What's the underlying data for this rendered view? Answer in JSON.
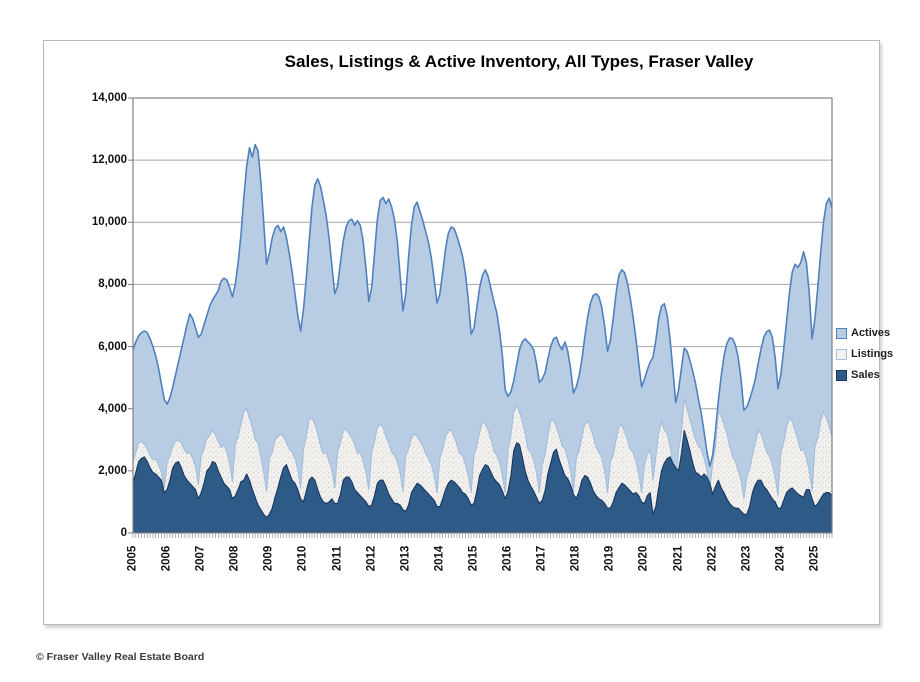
{
  "page": {
    "footer": "© Fraser Valley Real Estate Board"
  },
  "chart_data": {
    "type": "area",
    "title": "Sales, Listings & Active Inventory, All Types, Fraser Valley",
    "x_start": "2005-01",
    "x_end": "2025-07",
    "months_per_point": 1,
    "x_tick_labels": [
      "2005",
      "2006",
      "2007",
      "2008",
      "2009",
      "2010",
      "2011",
      "2012",
      "2013",
      "2014",
      "2015",
      "2016",
      "2017",
      "2018",
      "2019",
      "2020",
      "2021",
      "2022",
      "2023",
      "2024",
      "2025"
    ],
    "y_ticks": [
      0,
      2000,
      4000,
      6000,
      8000,
      10000,
      12000,
      14000
    ],
    "y_tick_labels": [
      "0",
      "2,000",
      "4,000",
      "6,000",
      "8,000",
      "10,000",
      "12,000",
      "14,000"
    ],
    "ylim": [
      0,
      14000
    ],
    "grid": true,
    "legend_position": "right",
    "colors": {
      "actives_fill": "#b8cce4",
      "actives_stroke": "#4f81bd",
      "listings_fill": "#f3f2f0",
      "listings_stroke": "#a3bddb",
      "sales_fill": "#2e5a88",
      "sales_stroke": "#17375e",
      "gridline": "#a6a6a6",
      "plot_border": "#808080",
      "tick": "#7f7f7f"
    },
    "series": [
      {
        "name": "Actives",
        "fill": "#b8cce4",
        "stroke": "#4f81bd",
        "values": [
          5900,
          6150,
          6350,
          6450,
          6500,
          6450,
          6250,
          6000,
          5700,
          5300,
          4800,
          4300,
          4150,
          4350,
          4700,
          5100,
          5500,
          5900,
          6300,
          6700,
          7050,
          6900,
          6600,
          6300,
          6400,
          6700,
          7000,
          7300,
          7500,
          7650,
          7800,
          8100,
          8200,
          8150,
          7900,
          7600,
          8000,
          8700,
          9600,
          10800,
          11800,
          12400,
          12100,
          12500,
          12300,
          11300,
          10000,
          8650,
          9000,
          9500,
          9800,
          9900,
          9700,
          9850,
          9500,
          9000,
          8400,
          7700,
          7000,
          6500,
          7200,
          8200,
          9400,
          10500,
          11200,
          11400,
          11150,
          10700,
          10200,
          9500,
          8600,
          7700,
          7950,
          8700,
          9400,
          9850,
          10050,
          10100,
          9900,
          10050,
          9900,
          9400,
          8500,
          7450,
          7900,
          9000,
          10100,
          10700,
          10800,
          10600,
          10750,
          10500,
          10100,
          9400,
          8300,
          7150,
          7700,
          8900,
          9900,
          10500,
          10650,
          10350,
          10050,
          9700,
          9350,
          8850,
          8150,
          7400,
          7700,
          8400,
          9150,
          9650,
          9850,
          9800,
          9550,
          9250,
          8900,
          8350,
          7500,
          6400,
          6600,
          7250,
          7900,
          8300,
          8470,
          8250,
          7850,
          7450,
          7100,
          6500,
          5700,
          4600,
          4400,
          4550,
          4900,
          5400,
          5900,
          6150,
          6250,
          6150,
          6050,
          5900,
          5450,
          4850,
          4950,
          5150,
          5600,
          6000,
          6250,
          6300,
          6050,
          5900,
          6150,
          5850,
          5300,
          4500,
          4700,
          5050,
          5600,
          6300,
          6950,
          7400,
          7650,
          7700,
          7600,
          7250,
          6650,
          5850,
          6200,
          6900,
          7700,
          8300,
          8470,
          8380,
          8050,
          7550,
          6950,
          6250,
          5450,
          4700,
          4950,
          5250,
          5500,
          5650,
          6200,
          6900,
          7300,
          7380,
          7000,
          6250,
          5250,
          4200,
          4600,
          5300,
          5950,
          5850,
          5550,
          5200,
          4800,
          4300,
          3850,
          3250,
          2600,
          2150,
          2500,
          3300,
          4250,
          5050,
          5700,
          6100,
          6280,
          6250,
          6050,
          5650,
          4950,
          3950,
          4050,
          4300,
          4600,
          4950,
          5450,
          5900,
          6300,
          6480,
          6530,
          6300,
          5650,
          4650,
          5100,
          5900,
          6800,
          7700,
          8400,
          8650,
          8550,
          8700,
          9050,
          8700,
          7700,
          6250,
          6900,
          7900,
          9000,
          10000,
          10600,
          10780,
          10460
        ]
      },
      {
        "name": "Listings",
        "fill": "#f3f2f0",
        "stroke": "#a3bddb",
        "texture": "speckle",
        "values": [
          2300,
          2600,
          2900,
          2950,
          2850,
          2700,
          2500,
          2350,
          2400,
          2200,
          1950,
          1450,
          2250,
          2500,
          2800,
          2950,
          3000,
          2900,
          2700,
          2550,
          2600,
          2400,
          2150,
          1550,
          2500,
          2700,
          3050,
          3150,
          3300,
          3150,
          2950,
          2750,
          2850,
          2600,
          2250,
          1650,
          2850,
          3100,
          3500,
          3900,
          4000,
          3700,
          3400,
          3000,
          2900,
          2450,
          1950,
          1350,
          2400,
          2600,
          3000,
          3100,
          3200,
          3100,
          2900,
          2700,
          2600,
          2400,
          2050,
          1450,
          2700,
          3100,
          3650,
          3700,
          3500,
          3200,
          2800,
          2550,
          2600,
          2300,
          2050,
          1450,
          2600,
          2900,
          3300,
          3350,
          3200,
          3050,
          2850,
          2550,
          2600,
          2300,
          1950,
          1400,
          2600,
          2950,
          3400,
          3500,
          3400,
          3100,
          2900,
          2600,
          2500,
          2300,
          1950,
          1350,
          2500,
          2700,
          3050,
          3200,
          3100,
          2950,
          2800,
          2550,
          2400,
          2200,
          1850,
          1300,
          2400,
          2700,
          3100,
          3300,
          3300,
          3100,
          2850,
          2550,
          2500,
          2200,
          1850,
          1300,
          2500,
          2800,
          3250,
          3600,
          3500,
          3300,
          3000,
          2650,
          2500,
          2300,
          1850,
          1300,
          2700,
          3150,
          3900,
          4100,
          3900,
          3600,
          3200,
          2700,
          2600,
          2350,
          1950,
          1300,
          2200,
          2500,
          3100,
          3600,
          3650,
          3400,
          3150,
          2800,
          2700,
          2400,
          2000,
          1300,
          2400,
          2650,
          3100,
          3500,
          3600,
          3400,
          3100,
          2750,
          2600,
          2400,
          2000,
          1300,
          2300,
          2500,
          3000,
          3400,
          3500,
          3250,
          3000,
          2700,
          2600,
          2300,
          1900,
          1300,
          2200,
          2500,
          2700,
          1700,
          2450,
          3200,
          3600,
          3300,
          3200,
          2800,
          2200,
          1600,
          2700,
          3200,
          4300,
          4000,
          3650,
          3300,
          3000,
          2800,
          2700,
          2400,
          2000,
          1400,
          2250,
          2800,
          3900,
          3750,
          3500,
          3200,
          2800,
          2450,
          2300,
          2000,
          1700,
          1100,
          1800,
          2050,
          2500,
          2900,
          3300,
          3200,
          2900,
          2600,
          2500,
          2200,
          1800,
          1200,
          2600,
          2900,
          3400,
          3700,
          3600,
          3300,
          3000,
          2650,
          2700,
          2400,
          2000,
          1350,
          2800,
          3050,
          3600,
          3900,
          3700,
          3450,
          3100
        ]
      },
      {
        "name": "Sales",
        "fill": "#2e5a88",
        "stroke": "#17375e",
        "values": [
          1600,
          1950,
          2300,
          2400,
          2450,
          2300,
          2100,
          1950,
          1900,
          1800,
          1700,
          1300,
          1400,
          1700,
          2100,
          2250,
          2300,
          2100,
          1850,
          1700,
          1600,
          1500,
          1400,
          1100,
          1300,
          1600,
          2000,
          2100,
          2300,
          2250,
          2000,
          1800,
          1600,
          1500,
          1400,
          1100,
          1200,
          1400,
          1650,
          1700,
          1900,
          1700,
          1400,
          1150,
          900,
          750,
          600,
          500,
          600,
          800,
          1150,
          1450,
          1800,
          2100,
          2200,
          1950,
          1700,
          1600,
          1400,
          1100,
          1000,
          1350,
          1700,
          1800,
          1700,
          1400,
          1150,
          1000,
          950,
          1000,
          1100,
          950,
          950,
          1250,
          1700,
          1800,
          1800,
          1650,
          1400,
          1300,
          1200,
          1100,
          1000,
          850,
          900,
          1200,
          1600,
          1700,
          1700,
          1500,
          1250,
          1100,
          950,
          950,
          900,
          750,
          700,
          900,
          1300,
          1450,
          1600,
          1550,
          1450,
          1350,
          1250,
          1150,
          1050,
          850,
          850,
          1100,
          1400,
          1600,
          1700,
          1650,
          1550,
          1450,
          1300,
          1250,
          1100,
          900,
          950,
          1350,
          1850,
          2050,
          2200,
          2150,
          1950,
          1750,
          1650,
          1550,
          1350,
          1100,
          1350,
          1850,
          2650,
          2900,
          2850,
          2450,
          2000,
          1700,
          1500,
          1350,
          1150,
          950,
          1050,
          1350,
          1900,
          2250,
          2600,
          2700,
          2350,
          2100,
          1850,
          1750,
          1550,
          1250,
          1100,
          1350,
          1700,
          1850,
          1800,
          1600,
          1350,
          1200,
          1100,
          1050,
          950,
          800,
          800,
          1000,
          1300,
          1450,
          1600,
          1550,
          1450,
          1350,
          1250,
          1300,
          1200,
          1000,
          950,
          1200,
          1300,
          600,
          850,
          1450,
          2000,
          2250,
          2400,
          2450,
          2250,
          2100,
          2000,
          2550,
          3300,
          3000,
          2650,
          2250,
          1950,
          1900,
          1800,
          1900,
          1800,
          1600,
          1250,
          1500,
          1700,
          1450,
          1300,
          1100,
          950,
          850,
          800,
          800,
          700,
          600,
          600,
          850,
          1300,
          1550,
          1700,
          1700,
          1500,
          1400,
          1250,
          1100,
          1000,
          800,
          800,
          1050,
          1300,
          1400,
          1450,
          1350,
          1250,
          1200,
          1150,
          1400,
          1400,
          1100,
          850,
          950,
          1100,
          1250,
          1300,
          1300,
          1200
        ]
      }
    ]
  }
}
